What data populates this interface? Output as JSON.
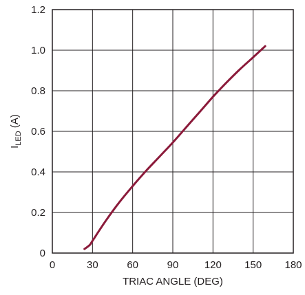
{
  "chart_data": {
    "type": "line",
    "title": "",
    "xlabel": "TRIAC ANGLE (DEG)",
    "ylabel": {
      "main": "I",
      "subscript": "LED",
      "unit": " (A)"
    },
    "xlim": [
      0,
      180
    ],
    "ylim": [
      0,
      1.2
    ],
    "x_ticks": [
      0,
      30,
      60,
      90,
      120,
      150,
      180
    ],
    "x_tick_labels": [
      "0",
      "30",
      "60",
      "90",
      "120",
      "150",
      "180"
    ],
    "y_ticks": [
      0,
      0.2,
      0.4,
      0.6,
      0.8,
      1.0,
      1.2
    ],
    "y_tick_labels": [
      "0",
      "0.2",
      "0.4",
      "0.6",
      "0.8",
      "1.0",
      "1.2"
    ],
    "grid": true,
    "series": [
      {
        "color": "#8b1a3a",
        "x": [
          24,
          28,
          30,
          40,
          50,
          60,
          70,
          80,
          90,
          100,
          110,
          120,
          130,
          140,
          150,
          159
        ],
        "y": [
          0.02,
          0.04,
          0.06,
          0.16,
          0.25,
          0.33,
          0.405,
          0.475,
          0.545,
          0.62,
          0.695,
          0.77,
          0.84,
          0.905,
          0.965,
          1.02
        ]
      }
    ]
  }
}
